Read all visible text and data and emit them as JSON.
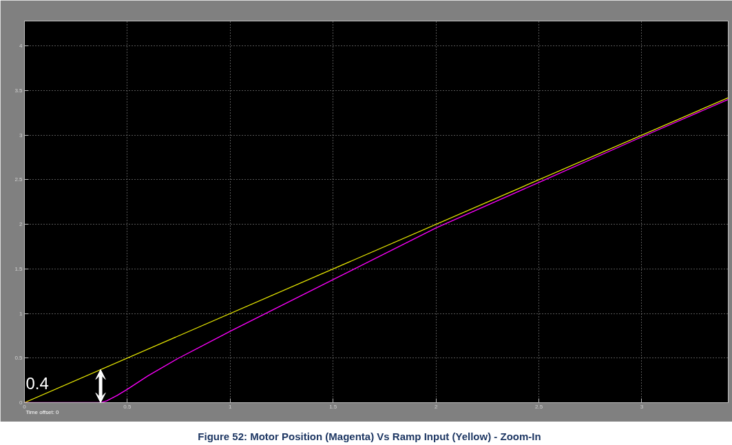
{
  "chart_data": {
    "type": "line",
    "title": "Figure 52: Motor Position (Magenta) Vs Ramp Input (Yellow) - Zoom-In",
    "series": [
      {
        "color": "#e6e600",
        "x": [
          0,
          3.42
        ],
        "values": [
          0,
          3.42
        ]
      },
      {
        "color": "#ff00ff",
        "x": [
          0,
          0.37,
          0.4,
          0.45,
          0.5,
          0.6,
          0.75,
          1,
          1.5,
          2,
          2.5,
          3,
          3.42
        ],
        "values": [
          0,
          0,
          0.02,
          0.08,
          0.15,
          0.3,
          0.5,
          0.8,
          1.38,
          1.96,
          2.47,
          2.98,
          3.4
        ]
      }
    ],
    "xlim": [
      0,
      3.42
    ],
    "ylim": [
      0,
      4.28
    ],
    "xticks": [
      0,
      0.5,
      1,
      1.5,
      2,
      2.5,
      3
    ],
    "yticks": [
      0,
      0.5,
      1,
      1.5,
      2,
      2.5,
      3,
      3.5,
      4
    ],
    "grid": true,
    "line_style": "solid",
    "marker": "none",
    "annotations": [
      "0.4",
      "Time offset:  0"
    ]
  }
}
